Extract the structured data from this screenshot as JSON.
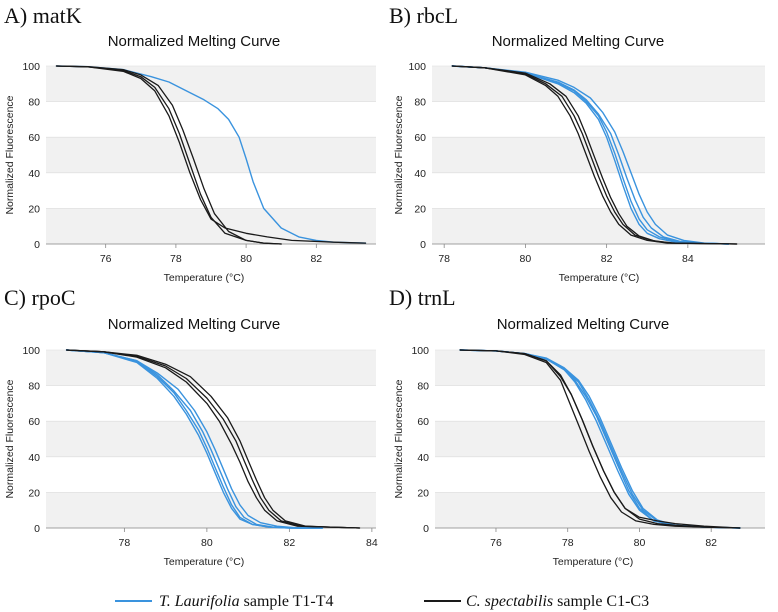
{
  "colors": {
    "T": "#3a93de",
    "C": "#1a1a1a"
  },
  "legend": [
    {
      "key": "T",
      "italic": "T. Laurifolia",
      "rest": " sample T1-T4"
    },
    {
      "key": "C",
      "italic": "C. spectabilis",
      "rest": " sample C1-C3"
    }
  ],
  "chart_data": [
    {
      "panel_label": "A) matK",
      "type": "line",
      "title": "Normalized Melting Curve",
      "xlabel": "Temperature (°C)",
      "ylabel": "Normalized Fluorescence",
      "xlim": [
        74.3,
        83.7
      ],
      "ylim": [
        0,
        100
      ],
      "xticks": [
        76,
        78,
        80,
        82
      ],
      "yticks": [
        0,
        20,
        40,
        60,
        80,
        100
      ],
      "series": [
        {
          "group": "T",
          "name": "T. Laurifolia T1-T4",
          "x": [
            74.6,
            75.5,
            76.5,
            77.3,
            77.8,
            78.3,
            78.8,
            79.2,
            79.5,
            79.8,
            80.0,
            80.2,
            80.5,
            81.0,
            81.5,
            82.0,
            82.5,
            83.4
          ],
          "y": [
            100,
            99.6,
            98,
            94,
            91,
            86,
            81,
            76,
            70,
            60,
            48,
            35,
            20,
            9,
            4,
            2,
            1,
            0.5
          ]
        },
        {
          "group": "C",
          "name": "C. spectabilis C1",
          "x": [
            74.6,
            75.5,
            76.5,
            77.0,
            77.4,
            77.8,
            78.1,
            78.4,
            78.7,
            79.0,
            79.4,
            80.0,
            80.6,
            81.3,
            82.5,
            83.4
          ],
          "y": [
            100,
            99.5,
            97,
            93,
            86,
            72,
            57,
            40,
            25,
            14,
            9,
            6,
            4,
            2,
            1,
            0.5
          ]
        },
        {
          "group": "C",
          "name": "C. spectabilis C2",
          "x": [
            74.6,
            75.5,
            76.5,
            77.0,
            77.4,
            77.8,
            78.1,
            78.4,
            78.7,
            79.0,
            79.4,
            80.0,
            80.5,
            81.0
          ],
          "y": [
            100,
            99.5,
            97.5,
            94,
            88,
            76,
            62,
            45,
            28,
            15,
            6,
            2,
            0.5,
            0
          ]
        },
        {
          "group": "C",
          "name": "C. spectabilis C3",
          "x": [
            74.6,
            75.5,
            76.5,
            77.0,
            77.5,
            77.9,
            78.2,
            78.5,
            78.8,
            79.1,
            79.5,
            80.0,
            80.5,
            81.0
          ],
          "y": [
            100,
            99.6,
            98,
            95,
            89,
            78,
            64,
            48,
            31,
            17,
            7,
            2,
            0.5,
            0
          ]
        }
      ]
    },
    {
      "panel_label": "B) rbcL",
      "type": "line",
      "title": "Normalized Melting Curve",
      "xlabel": "Temperature (°C)",
      "ylabel": "Normalized Fluorescence",
      "xlim": [
        77.7,
        85.9
      ],
      "ylim": [
        0,
        100
      ],
      "xticks": [
        78,
        80,
        82,
        84
      ],
      "yticks": [
        0,
        20,
        40,
        60,
        80,
        100
      ],
      "series": [
        {
          "group": "T",
          "name": "T. Laurifolia T1",
          "x": [
            78.2,
            79.0,
            80.0,
            80.8,
            81.2,
            81.5,
            81.8,
            82.0,
            82.2,
            82.4,
            82.6,
            82.8,
            83.0,
            83.3,
            83.7,
            84.2,
            85.0
          ],
          "y": [
            100,
            99,
            96,
            90,
            85,
            79,
            70,
            60,
            47,
            33,
            20,
            11,
            6,
            3,
            1,
            0.5,
            0
          ]
        },
        {
          "group": "T",
          "name": "T. Laurifolia T2",
          "x": [
            78.2,
            79.0,
            80.0,
            80.8,
            81.2,
            81.5,
            81.8,
            82.0,
            82.2,
            82.4,
            82.6,
            82.8,
            83.0,
            83.3,
            83.7,
            84.2,
            85.0
          ],
          "y": [
            100,
            99,
            96,
            90.5,
            86,
            80,
            72,
            63,
            51,
            37,
            24,
            14,
            8,
            4,
            1.5,
            0.5,
            0
          ]
        },
        {
          "group": "T",
          "name": "T. Laurifolia T3",
          "x": [
            78.2,
            79.0,
            80.0,
            80.8,
            81.2,
            81.5,
            81.8,
            82.1,
            82.3,
            82.5,
            82.7,
            82.9,
            83.1,
            83.4,
            83.8,
            84.3,
            85.0
          ],
          "y": [
            100,
            99,
            96,
            91,
            86.5,
            81,
            73,
            62,
            50,
            37,
            25,
            15,
            9,
            4,
            1.5,
            0.5,
            0
          ]
        },
        {
          "group": "T",
          "name": "T. Laurifolia T4",
          "x": [
            78.2,
            79.0,
            80.0,
            80.8,
            81.2,
            81.6,
            81.9,
            82.2,
            82.4,
            82.6,
            82.8,
            83.0,
            83.2,
            83.5,
            83.9,
            84.4,
            85.0
          ],
          "y": [
            100,
            99,
            96.5,
            92,
            88,
            82,
            74,
            63,
            52,
            40,
            28,
            18,
            11,
            5,
            2,
            0.5,
            0
          ]
        },
        {
          "group": "C",
          "name": "C. spectabilis C1",
          "x": [
            78.2,
            79.0,
            80.0,
            80.5,
            80.8,
            81.1,
            81.3,
            81.5,
            81.7,
            81.9,
            82.1,
            82.3,
            82.6,
            83.0,
            83.5,
            85.2
          ],
          "y": [
            100,
            99,
            95,
            89,
            83,
            72,
            62,
            50,
            38,
            27,
            18,
            11,
            5,
            2,
            0.5,
            0
          ]
        },
        {
          "group": "C",
          "name": "C. spectabilis C2",
          "x": [
            78.2,
            79.0,
            80.0,
            80.5,
            80.9,
            81.2,
            81.4,
            81.6,
            81.8,
            82.0,
            82.2,
            82.4,
            82.7,
            83.1,
            83.6,
            85.2
          ],
          "y": [
            100,
            99,
            95.5,
            90,
            83,
            72,
            62,
            50,
            38,
            27,
            18,
            11,
            5,
            2,
            0.5,
            0
          ]
        },
        {
          "group": "C",
          "name": "C. spectabilis C3",
          "x": [
            78.2,
            79.0,
            80.0,
            80.6,
            81.0,
            81.3,
            81.5,
            81.7,
            81.9,
            82.1,
            82.3,
            82.5,
            82.8,
            83.2,
            83.7,
            85.2
          ],
          "y": [
            100,
            99,
            96,
            90,
            83,
            72,
            61,
            49,
            37,
            26,
            17,
            10,
            4.5,
            1.5,
            0.5,
            0
          ]
        }
      ]
    },
    {
      "panel_label": "C) rpoC",
      "type": "line",
      "title": "Normalized Melting Curve",
      "xlabel": "Temperature (°C)",
      "ylabel": "Normalized Fluorescence",
      "xlim": [
        76.1,
        84.1
      ],
      "ylim": [
        0,
        100
      ],
      "xticks": [
        78,
        80,
        82,
        84
      ],
      "yticks": [
        0,
        20,
        40,
        60,
        80,
        100
      ],
      "series": [
        {
          "group": "T",
          "name": "T. Laurifolia T1",
          "x": [
            76.6,
            77.5,
            78.3,
            78.8,
            79.2,
            79.5,
            79.8,
            80.0,
            80.2,
            80.4,
            80.6,
            80.8,
            81.1,
            81.5,
            82.0,
            82.8
          ],
          "y": [
            100,
            98.5,
            93,
            84,
            74,
            64,
            52,
            42,
            31,
            20,
            11,
            5,
            2,
            0.5,
            0,
            0
          ]
        },
        {
          "group": "T",
          "name": "T. Laurifolia T2",
          "x": [
            76.6,
            77.5,
            78.3,
            78.8,
            79.2,
            79.5,
            79.8,
            80.0,
            80.2,
            80.4,
            80.6,
            80.8,
            81.1,
            81.5,
            82.0,
            82.8
          ],
          "y": [
            100,
            98.5,
            93.5,
            85,
            76,
            66,
            55,
            45,
            34,
            23,
            13,
            6,
            2,
            0.5,
            0,
            0
          ]
        },
        {
          "group": "T",
          "name": "T. Laurifolia T3",
          "x": [
            76.6,
            77.5,
            78.3,
            78.8,
            79.2,
            79.6,
            79.9,
            80.1,
            80.3,
            80.5,
            80.7,
            80.9,
            81.2,
            81.6,
            82.1,
            82.8
          ],
          "y": [
            100,
            98.5,
            94,
            86,
            77,
            66,
            54,
            44,
            33,
            22,
            12,
            6,
            2,
            0.5,
            0,
            0
          ]
        },
        {
          "group": "T",
          "name": "T. Laurifolia T4",
          "x": [
            76.6,
            77.5,
            78.3,
            78.8,
            79.3,
            79.7,
            80.0,
            80.2,
            80.4,
            80.6,
            80.8,
            81.0,
            81.3,
            81.7,
            82.2,
            82.8
          ],
          "y": [
            100,
            98.5,
            94,
            87,
            78,
            66,
            54,
            44,
            33,
            22,
            13,
            7,
            3,
            1,
            0,
            0
          ]
        },
        {
          "group": "C",
          "name": "C. spectabilis C1",
          "x": [
            76.6,
            77.5,
            78.3,
            79.0,
            79.5,
            80.0,
            80.3,
            80.6,
            80.8,
            81.0,
            81.2,
            81.4,
            81.7,
            82.2,
            83.0,
            83.7
          ],
          "y": [
            100,
            99,
            96,
            90,
            82,
            70,
            60,
            47,
            37,
            26,
            17,
            10,
            4,
            1,
            0.5,
            0
          ]
        },
        {
          "group": "C",
          "name": "C. spectabilis C2",
          "x": [
            76.6,
            77.5,
            78.3,
            79.0,
            79.5,
            80.0,
            80.4,
            80.7,
            80.9,
            81.1,
            81.3,
            81.5,
            81.8,
            82.3,
            83.0,
            83.7
          ],
          "y": [
            100,
            99,
            96.5,
            91,
            84,
            73,
            61,
            49,
            38,
            27,
            17,
            10,
            4,
            1,
            0.5,
            0
          ]
        },
        {
          "group": "C",
          "name": "C. spectabilis C3",
          "x": [
            76.6,
            77.5,
            78.3,
            79.0,
            79.6,
            80.1,
            80.5,
            80.8,
            81.0,
            81.2,
            81.4,
            81.6,
            81.9,
            82.4,
            83.0,
            83.7
          ],
          "y": [
            100,
            99,
            97,
            92,
            85,
            74,
            62,
            49,
            38,
            27,
            17,
            10,
            4,
            1,
            0.5,
            0
          ]
        }
      ]
    },
    {
      "panel_label": "D) trnL",
      "type": "line",
      "title": "Normalized Melting Curve",
      "xlabel": "Temperature (°C)",
      "ylabel": "Normalized Fluorescence",
      "xlim": [
        74.3,
        83.5
      ],
      "ylim": [
        0,
        100
      ],
      "xticks": [
        76,
        78,
        80,
        82
      ],
      "yticks": [
        0,
        20,
        40,
        60,
        80,
        100
      ],
      "series": [
        {
          "group": "T",
          "name": "T. Laurifolia T1",
          "x": [
            75.0,
            76.0,
            76.8,
            77.4,
            77.9,
            78.2,
            78.5,
            78.8,
            79.1,
            79.4,
            79.7,
            80.0,
            80.4,
            81.0,
            81.8,
            82.8
          ],
          "y": [
            100,
            99.5,
            98,
            95,
            89,
            82,
            72,
            60,
            46,
            32,
            19,
            10,
            4,
            1.5,
            0.5,
            0
          ]
        },
        {
          "group": "T",
          "name": "T. Laurifolia T2",
          "x": [
            75.0,
            76.0,
            76.8,
            77.4,
            77.9,
            78.2,
            78.5,
            78.8,
            79.1,
            79.4,
            79.7,
            80.0,
            80.4,
            81.0,
            81.8,
            82.8
          ],
          "y": [
            100,
            99.5,
            98,
            95,
            89,
            83,
            74,
            63,
            49,
            35,
            21,
            11,
            4,
            1.5,
            0.5,
            0
          ]
        },
        {
          "group": "T",
          "name": "T. Laurifolia T3",
          "x": [
            75.0,
            76.0,
            76.8,
            77.4,
            77.9,
            78.3,
            78.6,
            78.9,
            79.2,
            79.5,
            79.8,
            80.1,
            80.5,
            81.0,
            81.8,
            82.8
          ],
          "y": [
            100,
            99.5,
            98,
            95,
            89.5,
            82,
            72,
            60,
            46,
            32,
            19,
            10,
            4,
            1.5,
            0.5,
            0
          ]
        },
        {
          "group": "T",
          "name": "T. Laurifolia T4",
          "x": [
            75.0,
            76.0,
            76.8,
            77.4,
            77.9,
            78.3,
            78.6,
            78.9,
            79.2,
            79.5,
            79.8,
            80.1,
            80.5,
            81.0,
            81.8,
            82.8
          ],
          "y": [
            100,
            99.5,
            98,
            95.5,
            90,
            83,
            74,
            62,
            48,
            34,
            21,
            11,
            4.5,
            1.5,
            0.5,
            0
          ]
        },
        {
          "group": "C",
          "name": "C. spectabilis C1",
          "x": [
            75.0,
            76.0,
            76.8,
            77.4,
            77.8,
            78.1,
            78.4,
            78.7,
            79.0,
            79.3,
            79.6,
            80.0,
            80.5,
            81.0,
            81.8,
            82.8
          ],
          "y": [
            100,
            99.5,
            98,
            94,
            86,
            75,
            61,
            46,
            32,
            20,
            11,
            6,
            4,
            2.5,
            1,
            0
          ]
        },
        {
          "group": "C",
          "name": "C. spectabilis C2",
          "x": [
            75.0,
            76.0,
            76.8,
            77.4,
            77.8,
            78.0,
            78.3,
            78.6,
            78.9,
            79.2,
            79.5,
            79.9,
            80.4,
            81.0,
            81.8,
            82.8
          ],
          "y": [
            100,
            99.5,
            97.5,
            93,
            83,
            73,
            58,
            43,
            29,
            17,
            9,
            4,
            2,
            1,
            0.5,
            0
          ]
        },
        {
          "group": "C",
          "name": "C. spectabilis C3",
          "x": [
            75.0,
            76.0,
            76.8,
            77.4,
            77.8,
            78.1,
            78.4,
            78.7,
            79.0,
            79.3,
            79.6,
            80.0,
            80.5,
            81.0,
            81.8,
            82.8
          ],
          "y": [
            100,
            99.5,
            98,
            94,
            85,
            75,
            61,
            46,
            32,
            20,
            11,
            5,
            2.5,
            1.5,
            0.5,
            0
          ]
        }
      ]
    }
  ]
}
